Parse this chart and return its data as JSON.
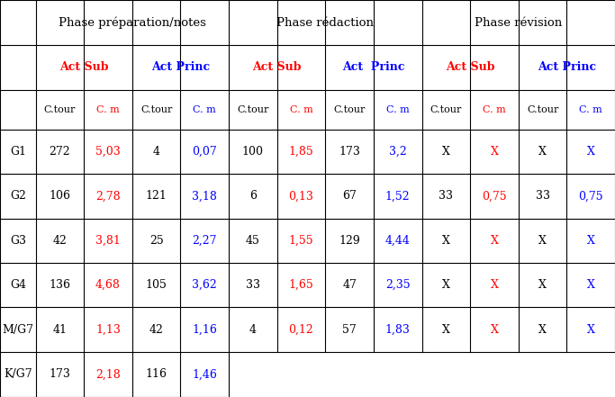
{
  "phases": [
    "Phase préparation/notes",
    "Phase rédaction",
    "Phase révision"
  ],
  "sub_headers": [
    "Act Sub",
    "Act Princ",
    "Act Sub",
    "Act  Princ",
    "Act Sub",
    "Act Princ"
  ],
  "sub_header_colors": [
    "red",
    "blue",
    "red",
    "blue",
    "red",
    "blue"
  ],
  "col_headers": [
    "C.tour",
    "C. m",
    "C.tour",
    "C. m",
    "C.tour",
    "C. m",
    "C.tour",
    "C. m",
    "C.tour",
    "C. m",
    "C.tour",
    "C. m"
  ],
  "col_header_colors": [
    "black",
    "red",
    "black",
    "blue",
    "black",
    "red",
    "black",
    "blue",
    "black",
    "red",
    "black",
    "blue"
  ],
  "row_labels": [
    "G1",
    "G2",
    "G3",
    "G4",
    "M/G7",
    "K/G7"
  ],
  "data": [
    [
      "272",
      "5,03",
      "4",
      "0,07",
      "100",
      "1,85",
      "173",
      "3,2",
      "X",
      "X",
      "X",
      "X"
    ],
    [
      "106",
      "2,78",
      "121",
      "3,18",
      "6",
      "0,13",
      "67",
      "1,52",
      "33",
      "0,75",
      "33",
      "0,75"
    ],
    [
      "42",
      "3,81",
      "25",
      "2,27",
      "45",
      "1,55",
      "129",
      "4,44",
      "X",
      "X",
      "X",
      "X"
    ],
    [
      "136",
      "4,68",
      "105",
      "3,62",
      "33",
      "1,65",
      "47",
      "2,35",
      "X",
      "X",
      "X",
      "X"
    ],
    [
      "41",
      "1,13",
      "42",
      "1,16",
      "4",
      "0,12",
      "57",
      "1,83",
      "X",
      "X",
      "X",
      "X"
    ],
    [
      "173",
      "2,18",
      "116",
      "1,46",
      "",
      "",
      "",
      "",
      "",
      "",
      "",
      ""
    ]
  ],
  "data_colors": [
    [
      "black",
      "red",
      "black",
      "blue",
      "black",
      "red",
      "black",
      "blue",
      "black",
      "red",
      "black",
      "blue"
    ],
    [
      "black",
      "red",
      "black",
      "blue",
      "black",
      "red",
      "black",
      "blue",
      "black",
      "red",
      "black",
      "blue"
    ],
    [
      "black",
      "red",
      "black",
      "blue",
      "black",
      "red",
      "black",
      "blue",
      "black",
      "red",
      "black",
      "blue"
    ],
    [
      "black",
      "red",
      "black",
      "blue",
      "black",
      "red",
      "black",
      "blue",
      "black",
      "red",
      "black",
      "blue"
    ],
    [
      "black",
      "red",
      "black",
      "blue",
      "black",
      "red",
      "black",
      "blue",
      "black",
      "red",
      "black",
      "blue"
    ],
    [
      "black",
      "red",
      "black",
      "blue",
      "black",
      "red",
      "black",
      "blue",
      "black",
      "red",
      "black",
      "blue"
    ]
  ],
  "background_color": "#ffffff",
  "border_color": "#000000",
  "fs_phase": 9.5,
  "fs_sub": 9.0,
  "fs_col": 8.0,
  "fs_data": 9.0,
  "fs_label": 9.0
}
